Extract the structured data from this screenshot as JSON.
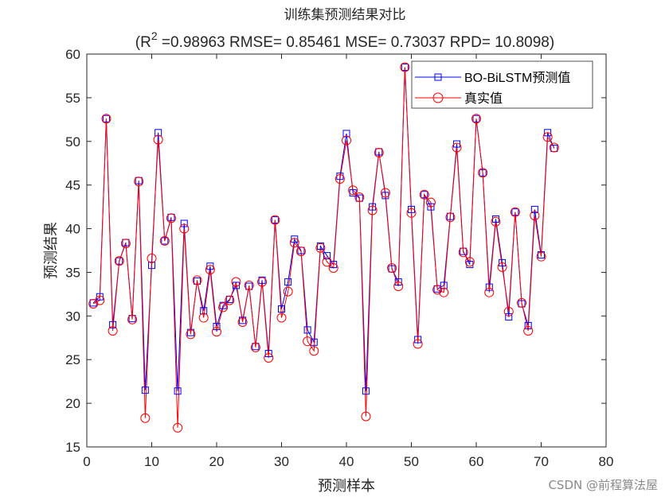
{
  "chart_data": {
    "type": "line",
    "title": "训练集预测结果对比",
    "subtitle_parts": {
      "prefix": "(R",
      "superscript": "2",
      "rest": " =0.98963 RMSE= 0.85461 MSE= 0.73037 RPD= 10.8098)"
    },
    "xlabel": "预测样本",
    "ylabel": "预测结果",
    "xlim": [
      0,
      80
    ],
    "ylim": [
      15,
      60
    ],
    "xticks": [
      0,
      10,
      20,
      30,
      40,
      50,
      60,
      70,
      80
    ],
    "yticks": [
      15,
      20,
      25,
      30,
      35,
      40,
      45,
      50,
      55,
      60
    ],
    "grid": false,
    "legend_position": "top-right",
    "x": [
      1,
      2,
      3,
      4,
      5,
      6,
      7,
      8,
      9,
      10,
      11,
      12,
      13,
      14,
      15,
      16,
      17,
      18,
      19,
      20,
      21,
      22,
      23,
      24,
      25,
      26,
      27,
      28,
      29,
      30,
      31,
      32,
      33,
      34,
      35,
      36,
      37,
      38,
      39,
      40,
      41,
      42,
      43,
      44,
      45,
      46,
      47,
      48,
      49,
      50,
      51,
      52,
      53,
      54,
      55,
      56,
      57,
      58,
      59,
      60,
      61,
      62,
      63,
      64,
      65,
      66,
      67,
      68,
      69,
      70,
      71,
      72
    ],
    "series": [
      {
        "name": "BO-BiLSTM预测值",
        "color": "#0000ff",
        "marker": "square",
        "values": [
          31.5,
          32.2,
          52.6,
          29.0,
          36.3,
          38.4,
          29.7,
          45.5,
          21.5,
          35.8,
          51.0,
          38.6,
          41.3,
          21.4,
          40.6,
          28.1,
          34.0,
          30.6,
          35.7,
          28.8,
          31.2,
          31.9,
          33.5,
          29.5,
          33.4,
          26.5,
          34.1,
          25.7,
          41.0,
          30.8,
          33.9,
          38.8,
          37.5,
          28.4,
          27.0,
          38.0,
          36.9,
          35.9,
          46.0,
          50.9,
          44.1,
          43.5,
          21.4,
          42.5,
          48.8,
          43.8,
          35.4,
          33.9,
          58.5,
          42.2,
          27.3,
          43.9,
          42.5,
          33.1,
          33.5,
          41.4,
          49.7,
          37.4,
          35.9,
          52.6,
          46.4,
          33.3,
          41.1,
          36.1,
          29.9,
          41.9,
          31.4,
          28.9,
          42.2,
          37.0,
          51.0,
          49.2
        ]
      },
      {
        "name": "真实值",
        "color": "#ff0000",
        "marker": "circle",
        "values": [
          31.4,
          31.8,
          52.6,
          28.3,
          36.3,
          38.3,
          29.6,
          45.4,
          18.3,
          36.6,
          50.2,
          38.6,
          41.2,
          17.2,
          40.0,
          27.9,
          34.1,
          29.8,
          35.3,
          28.2,
          31.0,
          31.8,
          33.9,
          29.3,
          33.5,
          26.4,
          33.9,
          25.2,
          41.0,
          29.8,
          32.8,
          38.4,
          37.4,
          27.1,
          26.0,
          37.8,
          36.2,
          35.5,
          45.7,
          50.1,
          44.4,
          43.6,
          18.5,
          42.1,
          48.7,
          44.1,
          35.5,
          33.4,
          58.5,
          41.8,
          26.8,
          43.9,
          43.0,
          33.0,
          32.7,
          41.3,
          49.3,
          37.3,
          36.2,
          52.6,
          46.4,
          32.7,
          40.8,
          35.6,
          30.5,
          41.9,
          31.5,
          28.3,
          41.5,
          36.8,
          50.5,
          49.3
        ]
      }
    ]
  },
  "watermark": "CSDN @前程算法屋"
}
